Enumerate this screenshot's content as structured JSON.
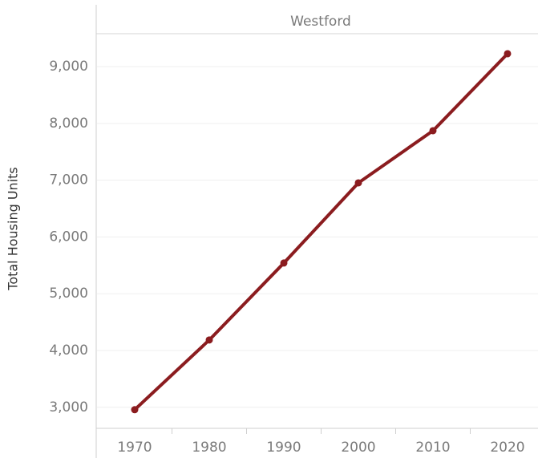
{
  "chart_data": {
    "type": "line",
    "title": "Westford",
    "y_label": "Total Housing Units",
    "categories": [
      "1970",
      "1980",
      "1990",
      "2000",
      "2010",
      "2020"
    ],
    "series": [
      {
        "name": "Total Housing Units",
        "color": "#8b1c1f",
        "values": [
          2958,
          4186,
          5541,
          6953,
          7871,
          9227
        ]
      }
    ],
    "ylim": [
      2630,
      9580
    ],
    "yticks": [
      {
        "value": 3000,
        "label": "3,000"
      },
      {
        "value": 4000,
        "label": "4,000"
      },
      {
        "value": 5000,
        "label": "5,000"
      },
      {
        "value": 6000,
        "label": "6,000"
      },
      {
        "value": 7000,
        "label": "7,000"
      },
      {
        "value": 8000,
        "label": "8,000"
      },
      {
        "value": 9000,
        "label": "9,000"
      }
    ],
    "grid": true
  }
}
